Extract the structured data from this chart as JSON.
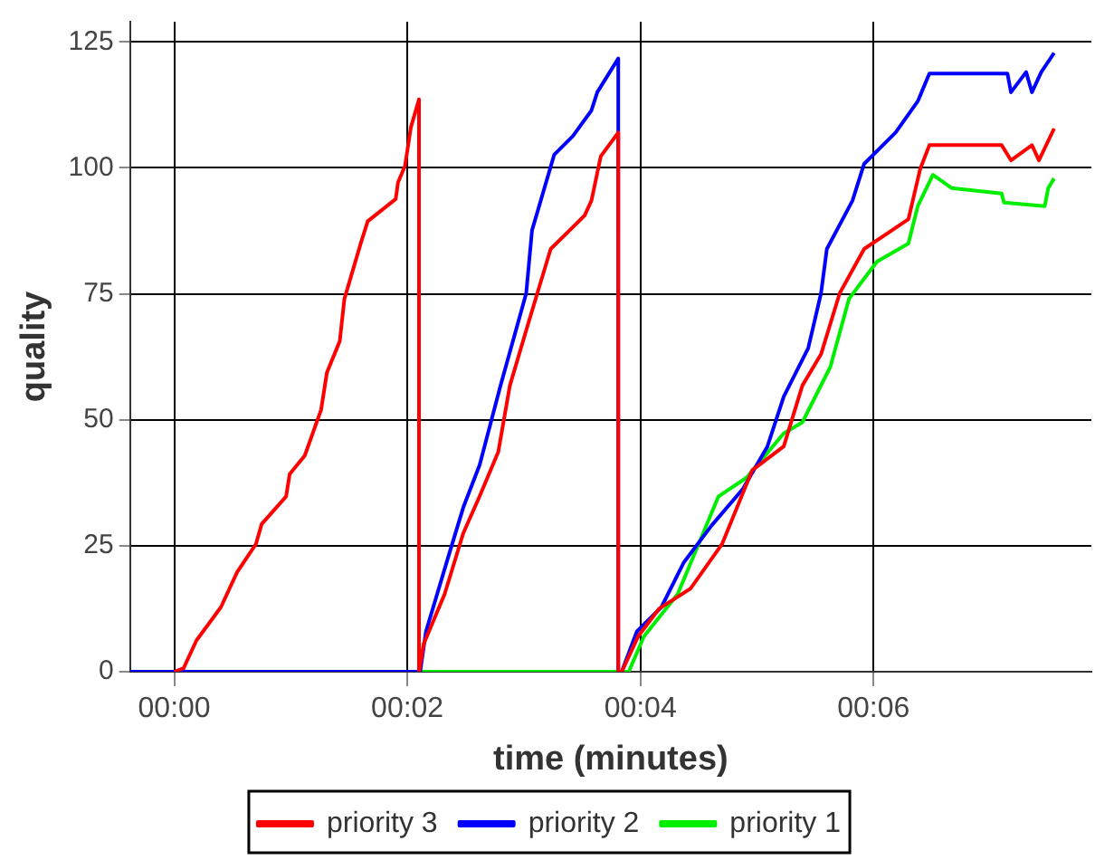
{
  "chart_data": {
    "type": "line",
    "xlabel": "time (minutes)",
    "ylabel": "quality",
    "xlim": [
      -0.38,
      7.87
    ],
    "ylim": [
      0,
      129
    ],
    "xticks": [
      {
        "value": 0,
        "label": "00:00"
      },
      {
        "value": 2,
        "label": "00:02"
      },
      {
        "value": 4,
        "label": "00:04"
      },
      {
        "value": 6,
        "label": "00:06"
      }
    ],
    "yticks": [
      0,
      25,
      50,
      75,
      100,
      125
    ],
    "grid": true,
    "legend": "bottom",
    "marker": "none",
    "line_style": "solid",
    "series": [
      {
        "name": "priority 3",
        "color": "#ff0000",
        "x": [
          0,
          0.08,
          0.19,
          0.4,
          0.54,
          0.7,
          0.75,
          0.96,
          0.99,
          1.12,
          1.26,
          1.31,
          1.42,
          1.46,
          1.6,
          1.66,
          1.9,
          1.92,
          1.98,
          2.03,
          2.1,
          2.1,
          2.14,
          2.32,
          2.48,
          2.62,
          2.78,
          2.88,
          3.04,
          3.23,
          3.52,
          3.58,
          3.66,
          3.81,
          3.81,
          3.84,
          3.98,
          4.16,
          4.43,
          4.7,
          4.96,
          5.23,
          5.39,
          5.55,
          5.71,
          5.92,
          6.3,
          6.4,
          6.48,
          7.1,
          7.18,
          7.36,
          7.42,
          7.55
        ],
        "values": [
          0,
          0.7,
          6.2,
          12.8,
          19.8,
          25.3,
          29.3,
          34.8,
          39.2,
          42.9,
          52,
          59.4,
          65.6,
          74,
          85,
          89.4,
          93.8,
          97.1,
          100.4,
          108,
          113.6,
          0,
          5.5,
          15.4,
          27.5,
          34.8,
          43.6,
          56.8,
          69.3,
          83.9,
          90.5,
          93.5,
          102.3,
          107,
          0,
          0,
          7,
          12.5,
          16.5,
          25.3,
          40,
          44.7,
          56.8,
          63,
          75.1,
          83.9,
          89.8,
          99.7,
          104.5,
          104.5,
          101.5,
          104.5,
          101.5,
          107.8
        ]
      },
      {
        "name": "priority 2",
        "color": "#0000ff",
        "x": [
          -0.38,
          2.11,
          2.16,
          2.35,
          2.48,
          2.62,
          2.8,
          3.02,
          3.07,
          3.26,
          3.42,
          3.58,
          3.63,
          3.81,
          3.81,
          3.84,
          3.97,
          4.18,
          4.37,
          4.61,
          4.88,
          5.09,
          5.23,
          5.44,
          5.55,
          5.6,
          5.82,
          5.92,
          6.19,
          6.38,
          6.48,
          7.15,
          7.18,
          7.31,
          7.36,
          7.44,
          7.55
        ],
        "values": [
          0,
          0,
          8,
          22.7,
          32.6,
          41,
          56.8,
          75.1,
          87.6,
          102.6,
          106.3,
          111.4,
          115,
          121.7,
          0,
          0,
          8,
          12.8,
          21.6,
          29,
          36.3,
          44.7,
          54.6,
          64.2,
          75.1,
          83.9,
          93.5,
          100.8,
          107,
          113.2,
          118.7,
          118.7,
          115,
          119,
          115,
          119,
          122.8
        ]
      },
      {
        "name": "priority 1",
        "color": "#00ee00",
        "x": [
          2.11,
          3.9,
          4.03,
          4.32,
          4.67,
          4.91,
          5.23,
          5.39,
          5.63,
          5.79,
          6.03,
          6.3,
          6.38,
          6.51,
          6.67,
          7.1,
          7.12,
          7.47,
          7.5,
          7.55
        ],
        "values": [
          0,
          0,
          7,
          15.4,
          34.8,
          38.5,
          47.3,
          49.5,
          60.5,
          74,
          81.4,
          85,
          92.4,
          98.6,
          96,
          94.9,
          93.1,
          92.4,
          96,
          97.9
        ]
      }
    ]
  }
}
